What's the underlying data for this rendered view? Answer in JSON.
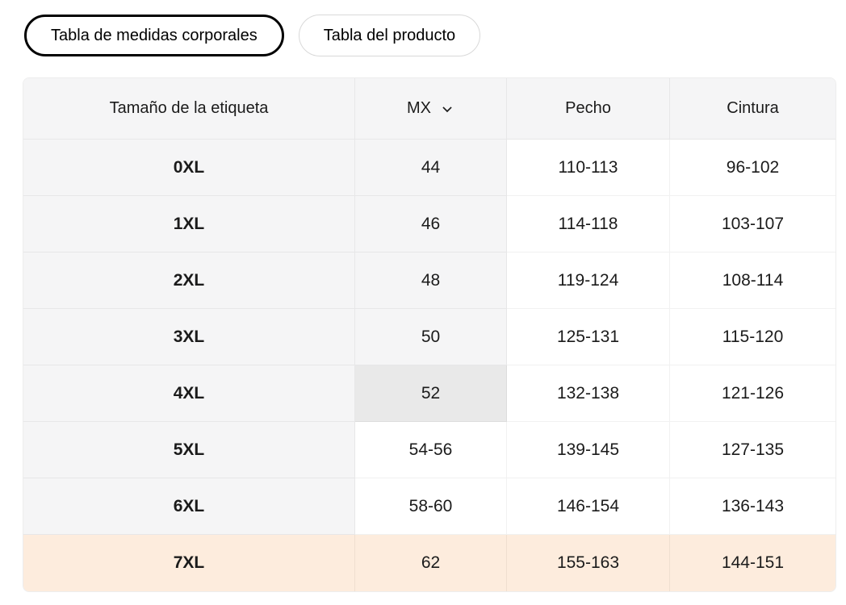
{
  "tabs": [
    {
      "label": "Tabla de medidas corporales",
      "selected": true
    },
    {
      "label": "Tabla del producto",
      "selected": false
    }
  ],
  "table": {
    "columns": [
      "Tamaño de la etiqueta",
      "MX",
      "Pecho",
      "Cintura"
    ],
    "unit_selector": {
      "value": "MX",
      "icon": "chevron-down-icon"
    },
    "rows": [
      {
        "size": "0XL",
        "mx": "44",
        "pecho": "110-113",
        "cintura": "96-102",
        "mx_shade": "gray",
        "highlighted": false
      },
      {
        "size": "1XL",
        "mx": "46",
        "pecho": "114-118",
        "cintura": "103-107",
        "mx_shade": "gray",
        "highlighted": false
      },
      {
        "size": "2XL",
        "mx": "48",
        "pecho": "119-124",
        "cintura": "108-114",
        "mx_shade": "gray",
        "highlighted": false
      },
      {
        "size": "3XL",
        "mx": "50",
        "pecho": "125-131",
        "cintura": "115-120",
        "mx_shade": "gray",
        "highlighted": false
      },
      {
        "size": "4XL",
        "mx": "52",
        "pecho": "132-138",
        "cintura": "121-126",
        "mx_shade": "dark",
        "highlighted": false
      },
      {
        "size": "5XL",
        "mx": "54-56",
        "pecho": "139-145",
        "cintura": "127-135",
        "mx_shade": "white",
        "highlighted": false
      },
      {
        "size": "6XL",
        "mx": "58-60",
        "pecho": "146-154",
        "cintura": "136-143",
        "mx_shade": "white",
        "highlighted": false
      },
      {
        "size": "7XL",
        "mx": "62",
        "pecho": "155-163",
        "cintura": "144-151",
        "mx_shade": "none",
        "highlighted": true
      }
    ]
  },
  "colors": {
    "header_bg": "#f5f5f6",
    "label_column_bg": "#f5f5f6",
    "mx_selected_cell_bg": "#e9e9e9",
    "highlight_row_bg": "#fdecdd",
    "separator": "#e9e9e9",
    "selected_tab_border": "#000000",
    "unselected_tab_border": "#d9d9d9",
    "text": "#1b1b1b"
  }
}
